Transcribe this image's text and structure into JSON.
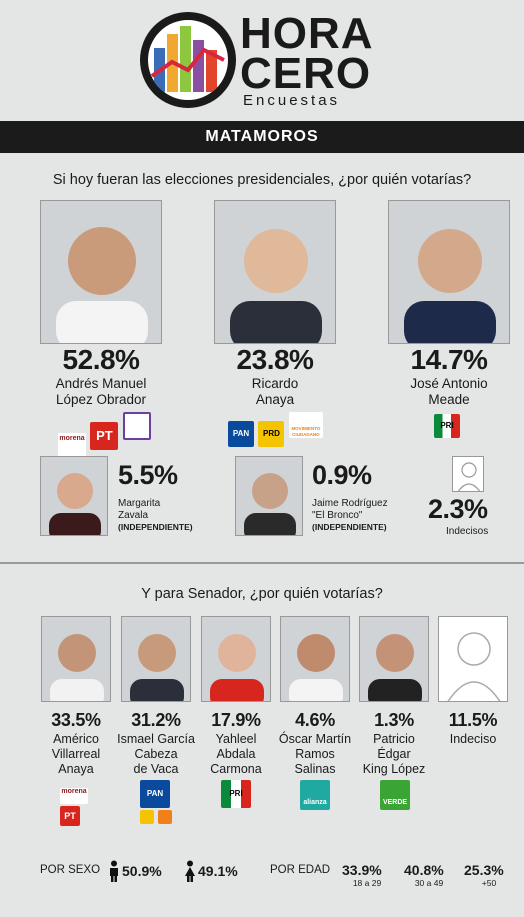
{
  "brand": {
    "line1": "HORA",
    "line2": "CERO",
    "line3": "Encuestas"
  },
  "region": "MATAMOROS",
  "colors": {
    "morena": "#8a1a1a",
    "pt": "#d7261e",
    "pan": "#0a4a9c",
    "prd": "#f5c400",
    "mc": "#f08019",
    "pri": "#0a8a3a",
    "verde": "#3aa534",
    "alianza": "#1fa9a0"
  },
  "chart_data": [
    {
      "type": "bar",
      "title": "Si hoy fueran las elecciones presidenciales, ¿por quién votarías?",
      "categories": [
        "Andrés Manuel López Obrador",
        "Ricardo Anaya",
        "José Antonio Meade",
        "Margarita Zavala",
        "Jaime Rodríguez \"El Bronco\"",
        "Indecisos"
      ],
      "values": [
        52.8,
        23.8,
        14.7,
        5.5,
        0.9,
        2.3
      ]
    },
    {
      "type": "bar",
      "title": "Y para Senador, ¿por quién votarías?",
      "categories": [
        "Américo Villarreal Anaya",
        "Ismael García Cabeza de Vaca",
        "Yahleel Abdala Carmona",
        "Óscar Martín Ramos Salinas",
        "Patricio Édgar King López",
        "Indeciso"
      ],
      "values": [
        33.5,
        31.2,
        17.9,
        4.6,
        1.3,
        11.5
      ]
    }
  ],
  "pres": {
    "question": "Si hoy fueran las elecciones presidenciales, ¿por quién votarías?",
    "c1": {
      "pct": "52.8%",
      "name1": "Andrés Manuel",
      "name2": "López Obrador"
    },
    "c2": {
      "pct": "23.8%",
      "name1": "Ricardo",
      "name2": "Anaya"
    },
    "c3": {
      "pct": "14.7%",
      "name1": "José Antonio",
      "name2": "Meade"
    },
    "c4": {
      "pct": "5.5%",
      "name1": "Margarita",
      "name2": "Zavala",
      "tag": "(INDEPENDIENTE)"
    },
    "c5": {
      "pct": "0.9%",
      "name1": "Jaime Rodríguez",
      "name2": "\"El Bronco\"",
      "tag": "(INDEPENDIENTE)"
    },
    "undecided": {
      "pct": "2.3%",
      "label": "Indecisos"
    }
  },
  "sen": {
    "question": "Y para Senador, ¿por quién votarías?",
    "c1": {
      "pct": "33.5%",
      "l1": "Américo",
      "l2": "Villarreal",
      "l3": "Anaya"
    },
    "c2": {
      "pct": "31.2%",
      "l1": "Ismael García",
      "l2": "Cabeza",
      "l3": "de Vaca"
    },
    "c3": {
      "pct": "17.9%",
      "l1": "Yahleel",
      "l2": "Abdala",
      "l3": "Carmona"
    },
    "c4": {
      "pct": "4.6%",
      "l1": "Óscar Martín",
      "l2": "Ramos",
      "l3": "Salinas"
    },
    "c5": {
      "pct": "1.3%",
      "l1": "Patricio",
      "l2": "Édgar",
      "l3": "King López"
    },
    "c6": {
      "pct": "11.5%",
      "l1": "Indeciso"
    }
  },
  "parties": {
    "morena": "morena",
    "pt": "PT",
    "pan": "PAN",
    "prd": "PRD",
    "mc": "MOVIMIENTO CIUDADANO",
    "pri": "PRI",
    "alianza": "alianza",
    "verde": "VERDE"
  },
  "footer": {
    "sexo_label": "POR SEXO",
    "men": "50.9%",
    "women": "49.1%",
    "edad_label": "POR EDAD",
    "ages": [
      {
        "val": "33.9%",
        "range": "18 a 29"
      },
      {
        "val": "40.8%",
        "range": "30 a 49"
      },
      {
        "val": "25.3%",
        "range": "+50"
      }
    ]
  }
}
